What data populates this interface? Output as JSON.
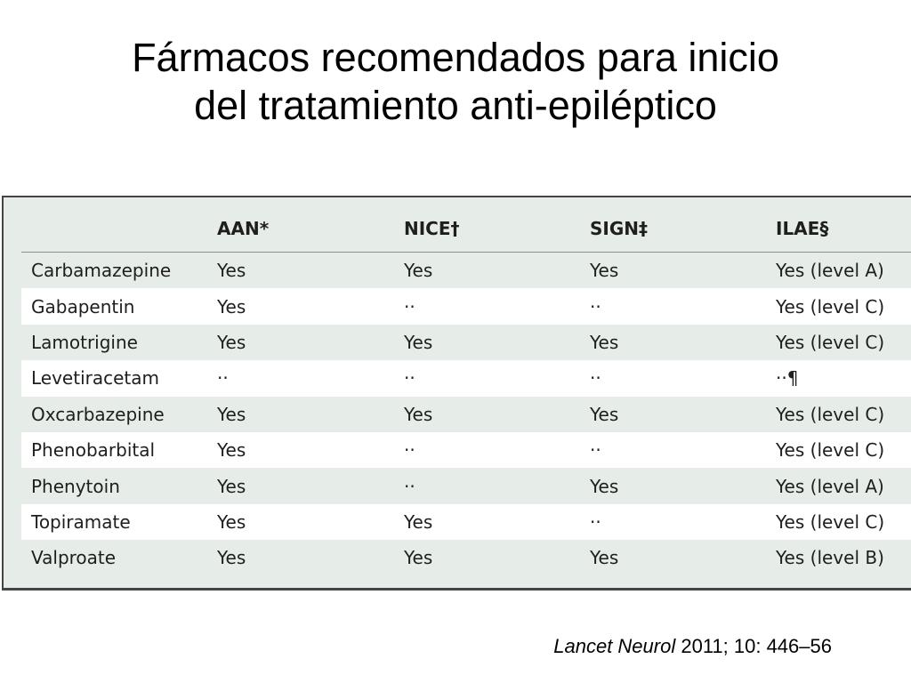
{
  "title": {
    "line1": "Fármacos recomendados para inicio",
    "line2": "del tratamiento anti-epiléptico"
  },
  "table": {
    "headers": [
      "",
      "AAN*",
      "NICE†",
      "SIGN‡",
      "ILAE§"
    ],
    "rows": [
      [
        "Carbamazepine",
        "Yes",
        "Yes",
        "Yes",
        "Yes (level A)"
      ],
      [
        "Gabapentin",
        "Yes",
        "··",
        "··",
        "Yes (level C)"
      ],
      [
        "Lamotrigine",
        "Yes",
        "Yes",
        "Yes",
        "Yes (level C)"
      ],
      [
        "Levetiracetam",
        "··",
        "··",
        "··",
        "··¶"
      ],
      [
        "Oxcarbazepine",
        "Yes",
        "Yes",
        "Yes",
        "Yes (level C)"
      ],
      [
        "Phenobarbital",
        "Yes",
        "··",
        "··",
        "Yes (level C)"
      ],
      [
        "Phenytoin",
        "Yes",
        "··",
        "Yes",
        "Yes (level A)"
      ],
      [
        "Topiramate",
        "Yes",
        "Yes",
        "··",
        "Yes (level C)"
      ],
      [
        "Valproate",
        "Yes",
        "Yes",
        "Yes",
        "Yes (level B)"
      ]
    ]
  },
  "citation": {
    "journal": "Lancet Neurol",
    "details": " 2011; 10: 446–56"
  },
  "colors": {
    "table_band": "#e6ede9",
    "table_white_row": "#ffffff",
    "table_border": "#444444"
  }
}
